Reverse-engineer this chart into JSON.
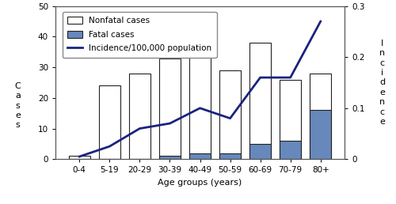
{
  "age_groups": [
    "0-4",
    "5-19",
    "20-29",
    "30-39",
    "40-49",
    "50-59",
    "60-69",
    "70-79",
    "80+"
  ],
  "nonfatal_cases": [
    1,
    24,
    28,
    33,
    44,
    29,
    38,
    26,
    28
  ],
  "fatal_cases": [
    0,
    0,
    0,
    1,
    2,
    2,
    5,
    6,
    16
  ],
  "incidence": [
    0.005,
    0.025,
    0.06,
    0.07,
    0.1,
    0.08,
    0.16,
    0.16,
    0.27
  ],
  "bar_nonfatal_color": "#ffffff",
  "bar_nonfatal_edge": "#222222",
  "bar_fatal_color": "#6688bb",
  "bar_fatal_edge": "#222222",
  "line_color": "#1a237e",
  "line_width": 2.0,
  "xlabel": "Age groups (years)",
  "ylim_left": [
    0,
    50
  ],
  "ylim_right": [
    0,
    0.3
  ],
  "yticks_left": [
    0,
    10,
    20,
    30,
    40,
    50
  ],
  "yticks_right": [
    0,
    0.1,
    0.2,
    0.3
  ],
  "legend_nonfatal": "Nonfatal cases",
  "legend_fatal": "Fatal cases",
  "legend_incidence": "Incidence/100,000 population",
  "background_color": "#ffffff",
  "axis_fontsize": 8,
  "tick_fontsize": 7.5,
  "legend_fontsize": 7.5,
  "bar_width": 0.72
}
